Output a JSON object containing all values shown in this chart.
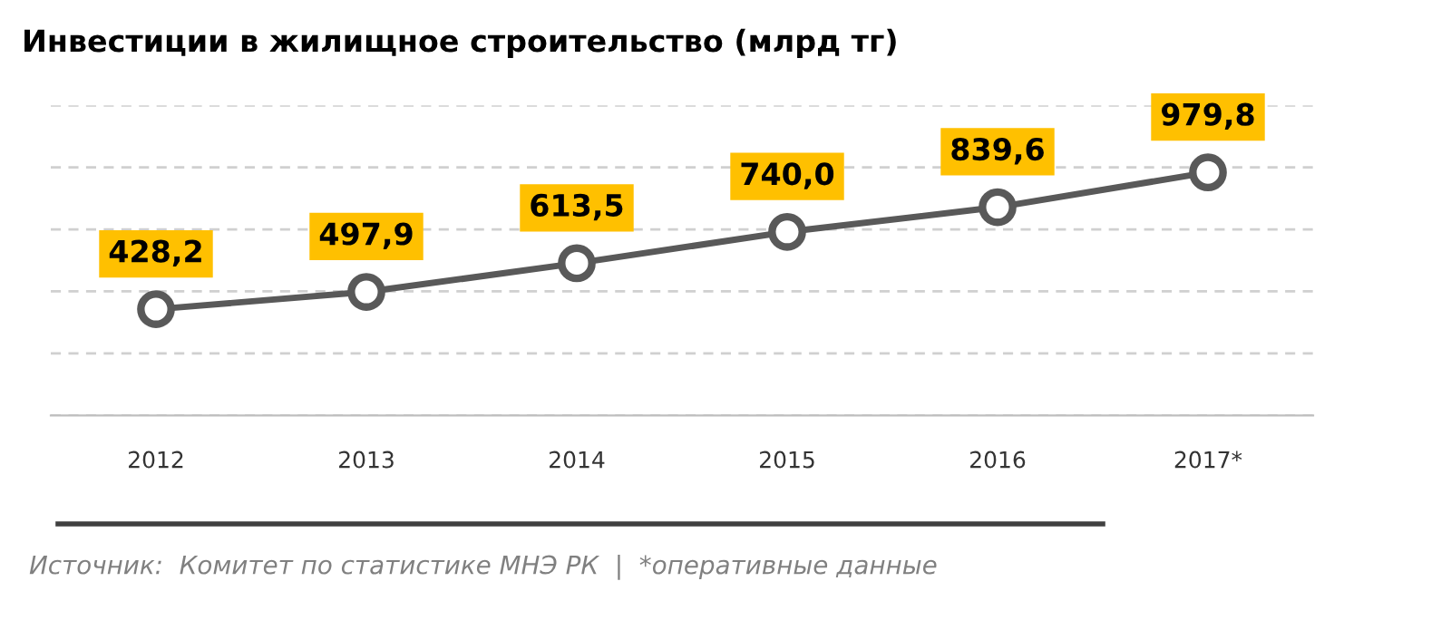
{
  "chart_data": {
    "type": "line",
    "title": "Инвестиции в жилищное строительство (млрд тг)",
    "categories": [
      "2012",
      "2013",
      "2014",
      "2015",
      "2016",
      "2017*"
    ],
    "values": [
      428.2,
      497.9,
      613.5,
      740.0,
      839.6,
      979.8
    ],
    "value_labels": [
      "428,2",
      "497,9",
      "613,5",
      "740,0",
      "839,6",
      "979,8"
    ],
    "color": "#595959",
    "marker": "circle",
    "line_style": "solid",
    "ylim": [
      0,
      1250
    ],
    "yticks": [
      {
        "value": 0,
        "label": null
      },
      {
        "value": 250,
        "label": null
      },
      {
        "value": 500,
        "label": null
      },
      {
        "value": 750,
        "label": null
      },
      {
        "value": 1000,
        "label": null
      },
      {
        "value": 1250,
        "label": null
      }
    ],
    "grid": "y",
    "tick_labels": "x",
    "legend": false,
    "annotations": [
      "Источник:  Комитет по статистике МНЭ РК  |  *оперативные данные"
    ]
  }
}
